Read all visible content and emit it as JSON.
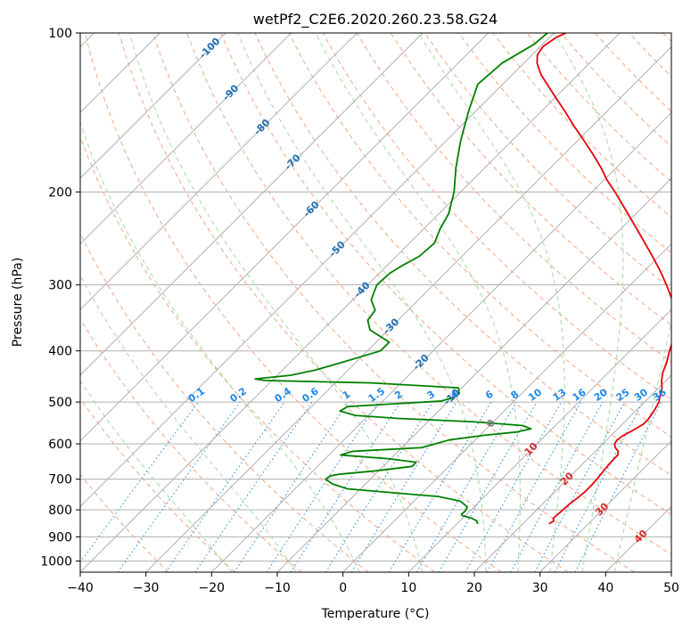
{
  "chart_data": {
    "type": "line",
    "title": "wetPf2_C2E6.2020.260.23.58.G24",
    "xlabel": "Temperature (°C)",
    "ylabel": "Pressure (hPa)",
    "xlim": [
      -40,
      50
    ],
    "ylim": [
      1050,
      100
    ],
    "y_scale": "log",
    "grid": true,
    "x_ticks": [
      -40,
      -30,
      -20,
      -10,
      0,
      10,
      20,
      30,
      40,
      50
    ],
    "y_ticks": [
      100,
      200,
      300,
      400,
      500,
      600,
      700,
      800,
      900,
      1000
    ],
    "colors": {
      "temperature": "#e8000b",
      "dewpoint": "#008000",
      "isotherm": "#b0b0b0",
      "dry_adiabat": "#f4a582",
      "moist_adiabat": "#a6d9a6",
      "mixing_ratio": "#1e88e5",
      "isotherm_label": "#1f6fb4",
      "warm_label": "#d62728",
      "zero_label": "#777777"
    },
    "series": [
      {
        "values": [
          [
            850,
            24.0
          ],
          [
            840,
            24.3
          ],
          [
            830,
            23.8
          ],
          [
            800,
            24.0
          ],
          [
            780,
            24.1
          ],
          [
            760,
            24.4
          ],
          [
            740,
            24.6
          ],
          [
            720,
            24.6
          ],
          [
            700,
            24.5
          ],
          [
            680,
            24.3
          ],
          [
            660,
            24.1
          ],
          [
            640,
            24.0
          ],
          [
            630,
            24.0
          ],
          [
            620,
            23.5
          ],
          [
            610,
            22.5
          ],
          [
            600,
            21.8
          ],
          [
            590,
            21.6
          ],
          [
            580,
            21.8
          ],
          [
            570,
            22.3
          ],
          [
            560,
            22.8
          ],
          [
            550,
            23.2
          ],
          [
            540,
            23.2
          ],
          [
            520,
            22.8
          ],
          [
            500,
            22.2
          ],
          [
            490,
            21.6
          ],
          [
            470,
            20.5
          ],
          [
            455,
            19.3
          ],
          [
            440,
            18.3
          ],
          [
            420,
            17.3
          ],
          [
            400,
            16.0
          ],
          [
            380,
            14.8
          ],
          [
            360,
            13.2
          ],
          [
            340,
            11.2
          ],
          [
            320,
            8.6
          ],
          [
            300,
            5.5
          ],
          [
            280,
            2.0
          ],
          [
            260,
            -2.0
          ],
          [
            240,
            -6.4
          ],
          [
            220,
            -11.2
          ],
          [
            200,
            -16.5
          ],
          [
            190,
            -19.5
          ],
          [
            180,
            -22.3
          ],
          [
            170,
            -25.5
          ],
          [
            160,
            -29.0
          ],
          [
            150,
            -32.8
          ],
          [
            140,
            -36.7
          ],
          [
            133,
            -39.7
          ],
          [
            126,
            -42.8
          ],
          [
            120,
            -45.6
          ],
          [
            114,
            -48.0
          ],
          [
            110,
            -49.2
          ],
          [
            106,
            -49.6
          ],
          [
            102,
            -49.0
          ],
          [
            100,
            -48.2
          ]
        ]
      },
      {
        "values": [
          [
            850,
            13.2
          ],
          [
            845,
            12.8
          ],
          [
            840,
            12.6
          ],
          [
            830,
            11.4
          ],
          [
            820,
            9.5
          ],
          [
            815,
            9.2
          ],
          [
            805,
            9.3
          ],
          [
            790,
            9.0
          ],
          [
            770,
            7.0
          ],
          [
            755,
            3.0
          ],
          [
            740,
            -6.0
          ],
          [
            730,
            -12.0
          ],
          [
            715,
            -15.0
          ],
          [
            700,
            -16.8
          ],
          [
            690,
            -16.6
          ],
          [
            685,
            -15.5
          ],
          [
            675,
            -10.5
          ],
          [
            662,
            -5.6
          ],
          [
            650,
            -5.6
          ],
          [
            640,
            -10.5
          ],
          [
            630,
            -18.2
          ],
          [
            620,
            -17.0
          ],
          [
            610,
            -7.0
          ],
          [
            600,
            -5.5
          ],
          [
            590,
            -4.0
          ],
          [
            578,
            0.7
          ],
          [
            570,
            5.0
          ],
          [
            562,
            6.8
          ],
          [
            554,
            5.0
          ],
          [
            545,
            -3.0
          ],
          [
            537,
            -15.0
          ],
          [
            530,
            -22.0
          ],
          [
            520,
            -25.0
          ],
          [
            510,
            -24.5
          ],
          [
            505,
            -19.0
          ],
          [
            498,
            -11.2
          ],
          [
            490,
            -9.7
          ],
          [
            482,
            -9.5
          ],
          [
            470,
            -10.5
          ],
          [
            460,
            -24.5
          ],
          [
            455,
            -41.2
          ],
          [
            452,
            -42.8
          ],
          [
            445,
            -38.0
          ],
          [
            435,
            -35.0
          ],
          [
            420,
            -32.0
          ],
          [
            400,
            -28.0
          ],
          [
            385,
            -28.0
          ],
          [
            365,
            -32.8
          ],
          [
            350,
            -34.6
          ],
          [
            335,
            -35.0
          ],
          [
            320,
            -37.2
          ],
          [
            300,
            -38.6
          ],
          [
            285,
            -38.4
          ],
          [
            275,
            -37.6
          ],
          [
            265,
            -36.5
          ],
          [
            250,
            -36.2
          ],
          [
            235,
            -37.5
          ],
          [
            220,
            -38.5
          ],
          [
            200,
            -41.0
          ],
          [
            180,
            -44.4
          ],
          [
            160,
            -47.8
          ],
          [
            140,
            -51.2
          ],
          [
            125,
            -53.8
          ],
          [
            114,
            -53.3
          ],
          [
            105,
            -51.3
          ],
          [
            100,
            -51.0
          ]
        ]
      }
    ],
    "isotherm_labels": [
      "-100",
      "-90",
      "-80",
      "-70",
      "-60",
      "-50",
      "-40",
      "-30",
      "-20",
      "-10",
      "0",
      "10",
      "20",
      "30",
      "40"
    ],
    "mixing_ratio_labels": [
      "0.1",
      "0.2",
      "0.4",
      "0.6",
      "1",
      "1.5",
      "2",
      "3",
      "4",
      "6",
      "8",
      "10",
      "13",
      "16",
      "20",
      "25",
      "30",
      "36"
    ]
  }
}
